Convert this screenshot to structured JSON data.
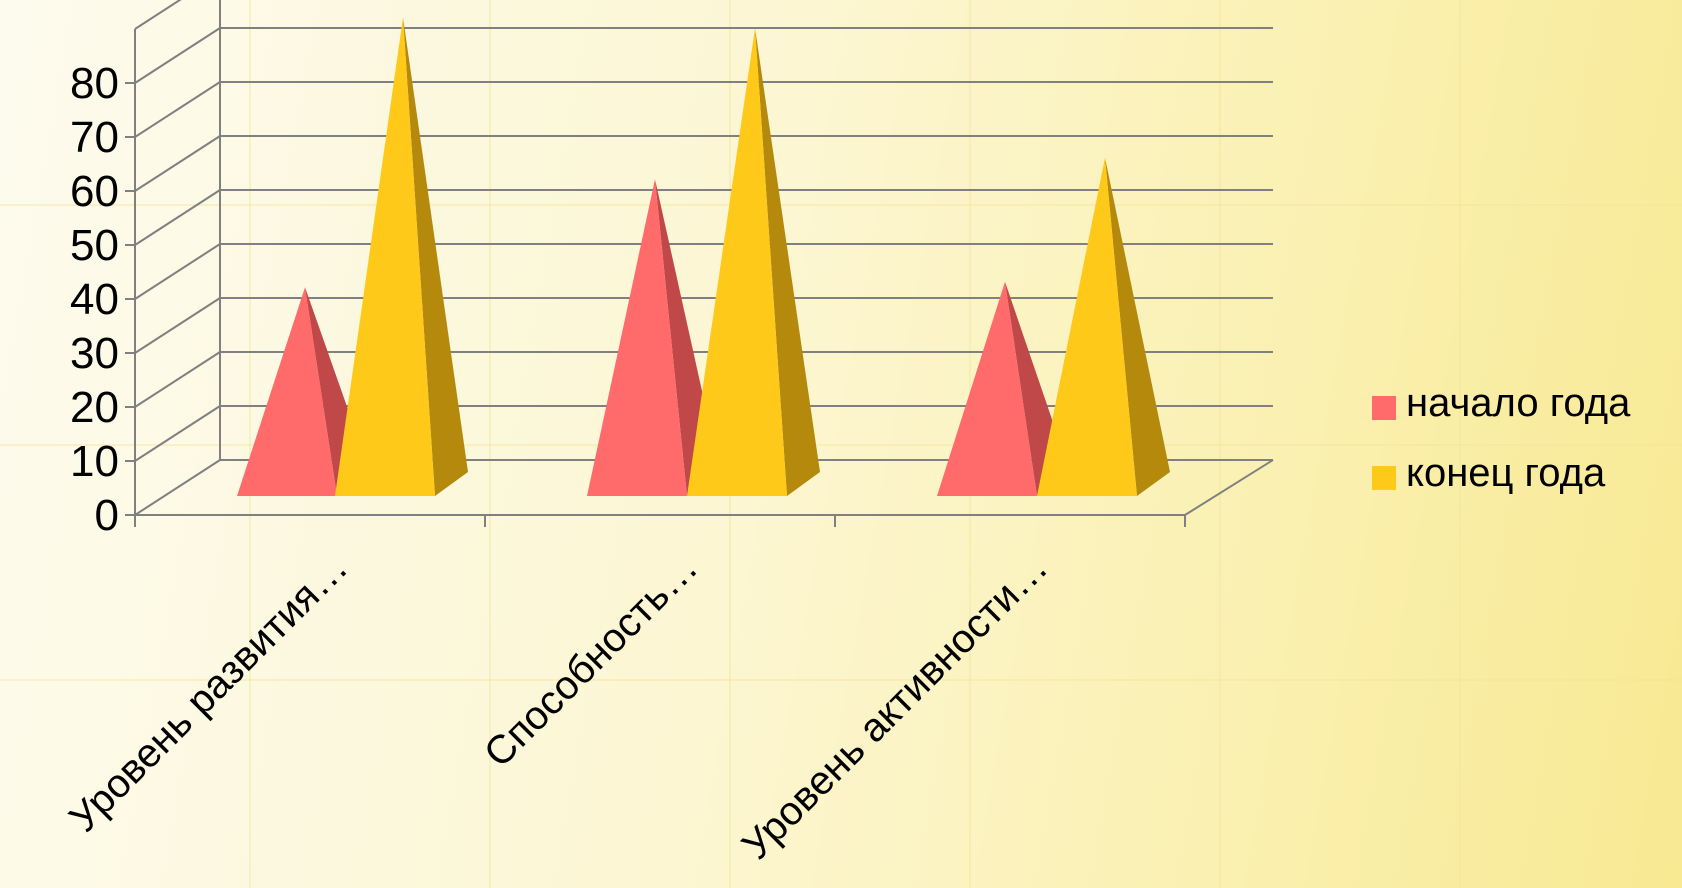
{
  "chart_data": {
    "type": "bar",
    "shape": "pyramid-3d",
    "categories": [
      "Уровень развития…",
      "Способность…",
      "Уровень активности…"
    ],
    "series": [
      {
        "name": "начало года",
        "values": [
          32,
          52,
          33
        ],
        "color": "#ff6a6a",
        "shade": "#c14848"
      },
      {
        "name": "конец года",
        "values": [
          82,
          80,
          56
        ],
        "color": "#ffc91a",
        "shade": "#b58a0c"
      }
    ],
    "yticks": [
      "0",
      "10",
      "20",
      "30",
      "40",
      "50",
      "60",
      "70",
      "80"
    ],
    "ylim": [
      0,
      90
    ],
    "grid": true,
    "legend": "right"
  }
}
